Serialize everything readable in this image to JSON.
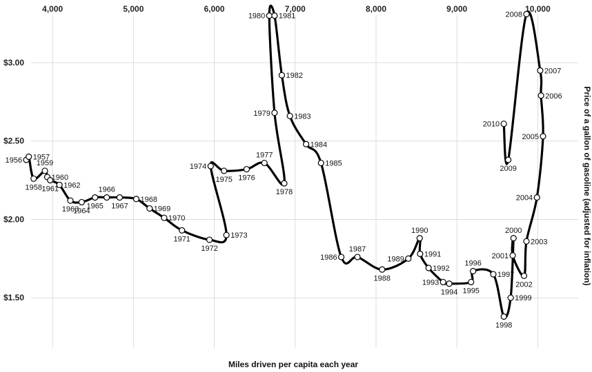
{
  "chart_data": {
    "type": "line",
    "xlabel": "Miles driven per capita each year",
    "ylabel": "Price of a gallon of gasoline (adjusted for inflation)",
    "xlim": [
      3350,
      10500
    ],
    "ylim": [
      1.18,
      3.4
    ],
    "xticks": [
      {
        "value": 4000,
        "label": "4,000"
      },
      {
        "value": 5000,
        "label": "5,000"
      },
      {
        "value": 6000,
        "label": "6,000"
      },
      {
        "value": 7000,
        "label": "7,000"
      },
      {
        "value": 8000,
        "label": "8,000"
      },
      {
        "value": 9000,
        "label": "9,000"
      },
      {
        "value": 10000,
        "label": "10,000"
      }
    ],
    "yticks": [
      {
        "value": 1.5,
        "label": "$1.50"
      },
      {
        "value": 2.0,
        "label": "$2.00"
      },
      {
        "value": 2.5,
        "label": "$2.50"
      },
      {
        "value": 3.0,
        "label": "$3.00"
      }
    ],
    "grid": true,
    "series": [
      {
        "points": [
          {
            "year": "1956",
            "x": 3675,
            "y": 2.38,
            "pos": "left"
          },
          {
            "year": "1957",
            "x": 3706,
            "y": 2.4,
            "pos": "right"
          },
          {
            "year": "1958",
            "x": 3766,
            "y": 2.26,
            "pos": "below"
          },
          {
            "year": "1959",
            "x": 3905,
            "y": 2.31,
            "pos": "above"
          },
          {
            "year": "1960",
            "x": 3935,
            "y": 2.27,
            "pos": "right"
          },
          {
            "year": "1961",
            "x": 3971,
            "y": 2.25,
            "pos": "below"
          },
          {
            "year": "1962",
            "x": 4085,
            "y": 2.22,
            "pos": "right"
          },
          {
            "year": "1963",
            "x": 4220,
            "y": 2.12,
            "pos": "below"
          },
          {
            "year": "1964",
            "x": 4360,
            "y": 2.11,
            "pos": "below"
          },
          {
            "year": "1965",
            "x": 4525,
            "y": 2.14,
            "pos": "below"
          },
          {
            "year": "1966",
            "x": 4670,
            "y": 2.14,
            "pos": "above"
          },
          {
            "year": "1967",
            "x": 4830,
            "y": 2.14,
            "pos": "below"
          },
          {
            "year": "1968",
            "x": 5035,
            "y": 2.13,
            "pos": "right"
          },
          {
            "year": "1969",
            "x": 5200,
            "y": 2.07,
            "pos": "right"
          },
          {
            "year": "1970",
            "x": 5380,
            "y": 2.01,
            "pos": "right"
          },
          {
            "year": "1971",
            "x": 5600,
            "y": 1.93,
            "pos": "below"
          },
          {
            "year": "1972",
            "x": 5940,
            "y": 1.87,
            "pos": "below"
          },
          {
            "year": "1973",
            "x": 6150,
            "y": 1.9,
            "pos": "right"
          },
          {
            "year": "1974",
            "x": 5955,
            "y": 2.34,
            "pos": "left"
          },
          {
            "year": "1975",
            "x": 6120,
            "y": 2.31,
            "pos": "below"
          },
          {
            "year": "1976",
            "x": 6400,
            "y": 2.32,
            "pos": "below"
          },
          {
            "year": "1977",
            "x": 6620,
            "y": 2.36,
            "pos": "above"
          },
          {
            "year": "1978",
            "x": 6865,
            "y": 2.23,
            "pos": "below"
          },
          {
            "year": "1979",
            "x": 6745,
            "y": 2.68,
            "pos": "left"
          },
          {
            "year": "1980",
            "x": 6680,
            "y": 3.3,
            "pos": "left"
          },
          {
            "year": "1981",
            "x": 6745,
            "y": 3.3,
            "pos": "right"
          },
          {
            "year": "1982",
            "x": 6835,
            "y": 2.92,
            "pos": "right"
          },
          {
            "year": "1983",
            "x": 6935,
            "y": 2.66,
            "pos": "right"
          },
          {
            "year": "1984",
            "x": 7135,
            "y": 2.48,
            "pos": "right"
          },
          {
            "year": "1985",
            "x": 7320,
            "y": 2.36,
            "pos": "right"
          },
          {
            "year": "1986",
            "x": 7570,
            "y": 1.76,
            "pos": "left"
          },
          {
            "year": "1987",
            "x": 7770,
            "y": 1.76,
            "pos": "above"
          },
          {
            "year": "1988",
            "x": 8075,
            "y": 1.68,
            "pos": "below"
          },
          {
            "year": "1989",
            "x": 8400,
            "y": 1.75,
            "pos": "left"
          },
          {
            "year": "1990",
            "x": 8540,
            "y": 1.88,
            "pos": "above"
          },
          {
            "year": "1991",
            "x": 8545,
            "y": 1.78,
            "pos": "right"
          },
          {
            "year": "1992",
            "x": 8650,
            "y": 1.69,
            "pos": "right"
          },
          {
            "year": "1993",
            "x": 8830,
            "y": 1.6,
            "pos": "left"
          },
          {
            "year": "1994",
            "x": 8905,
            "y": 1.59,
            "pos": "below"
          },
          {
            "year": "1995",
            "x": 9175,
            "y": 1.6,
            "pos": "below"
          },
          {
            "year": "1996",
            "x": 9200,
            "y": 1.67,
            "pos": "above"
          },
          {
            "year": "1997",
            "x": 9450,
            "y": 1.65,
            "pos": "right"
          },
          {
            "year": "1998",
            "x": 9580,
            "y": 1.38,
            "pos": "below"
          },
          {
            "year": "1999",
            "x": 9665,
            "y": 1.5,
            "pos": "right"
          },
          {
            "year": "2000",
            "x": 9700,
            "y": 1.88,
            "pos": "above"
          },
          {
            "year": "2001",
            "x": 9690,
            "y": 1.77,
            "pos": "left"
          },
          {
            "year": "2002",
            "x": 9830,
            "y": 1.64,
            "pos": "below"
          },
          {
            "year": "2003",
            "x": 9860,
            "y": 1.86,
            "pos": "right"
          },
          {
            "year": "2004",
            "x": 9990,
            "y": 2.14,
            "pos": "left"
          },
          {
            "year": "2005",
            "x": 10065,
            "y": 2.53,
            "pos": "left"
          },
          {
            "year": "2006",
            "x": 10040,
            "y": 2.79,
            "pos": "right"
          },
          {
            "year": "2007",
            "x": 10030,
            "y": 2.95,
            "pos": "right"
          },
          {
            "year": "2008",
            "x": 9860,
            "y": 3.31,
            "pos": "left"
          },
          {
            "year": "2009",
            "x": 9635,
            "y": 2.38,
            "pos": "below"
          },
          {
            "year": "2010",
            "x": 9580,
            "y": 2.61,
            "pos": "left"
          }
        ]
      }
    ]
  }
}
